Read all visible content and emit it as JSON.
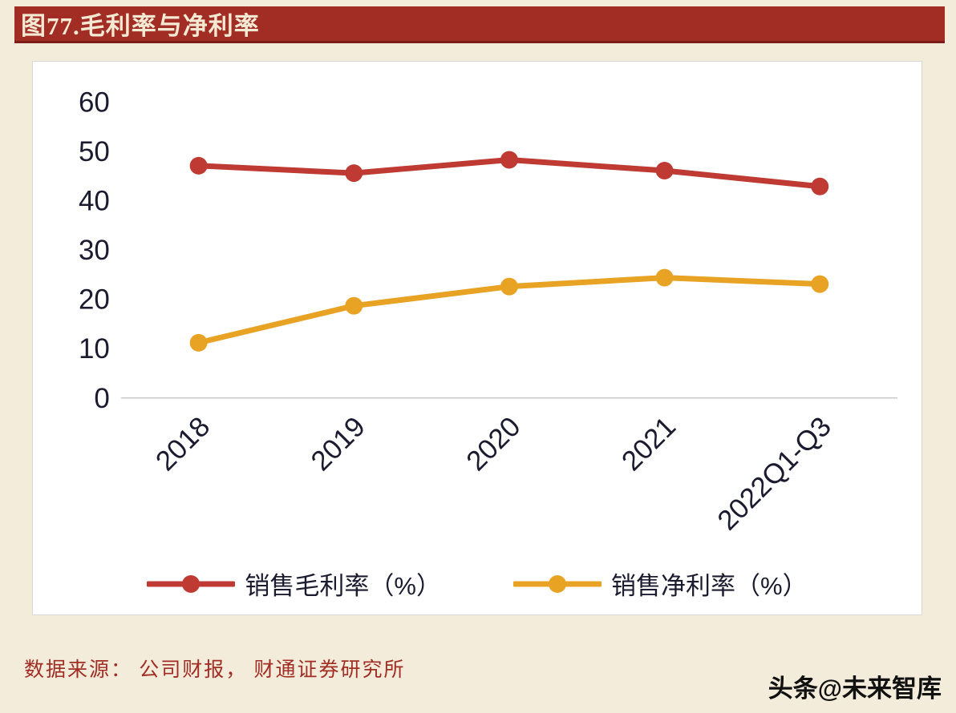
{
  "page": {
    "title": "图77.毛利率与净利率",
    "source": "数据来源： 公司财报， 财通证券研究所",
    "watermark": "头条@未来智库"
  },
  "colors": {
    "background": "#f3ecdb",
    "title_bar": "#a12d24",
    "title_text": "#f4e9d2",
    "gross_margin": "#bf3a32",
    "net_margin": "#e8a325",
    "axis_text": "#1b1b30",
    "axis_line": "#c9c9c9",
    "source_text": "#a12d24"
  },
  "chart_data": {
    "type": "line",
    "categories": [
      "2018",
      "2019",
      "2020",
      "2021",
      "2022Q1-Q3"
    ],
    "series": [
      {
        "name": "销售毛利率（%）",
        "color_key": "gross_margin",
        "values": [
          47.1,
          45.6,
          48.3,
          46.1,
          42.9
        ]
      },
      {
        "name": "销售净利率（%）",
        "color_key": "net_margin",
        "values": [
          11.2,
          18.7,
          22.6,
          24.4,
          23.1
        ]
      }
    ],
    "title": "毛利率与净利率",
    "xlabel": "",
    "ylabel": "",
    "ylim": [
      0,
      60
    ],
    "yticks": [
      0,
      10,
      20,
      30,
      40,
      50,
      60
    ],
    "grid": false,
    "legend_position": "bottom",
    "marker": "circle",
    "x_label_rotation": 45
  }
}
